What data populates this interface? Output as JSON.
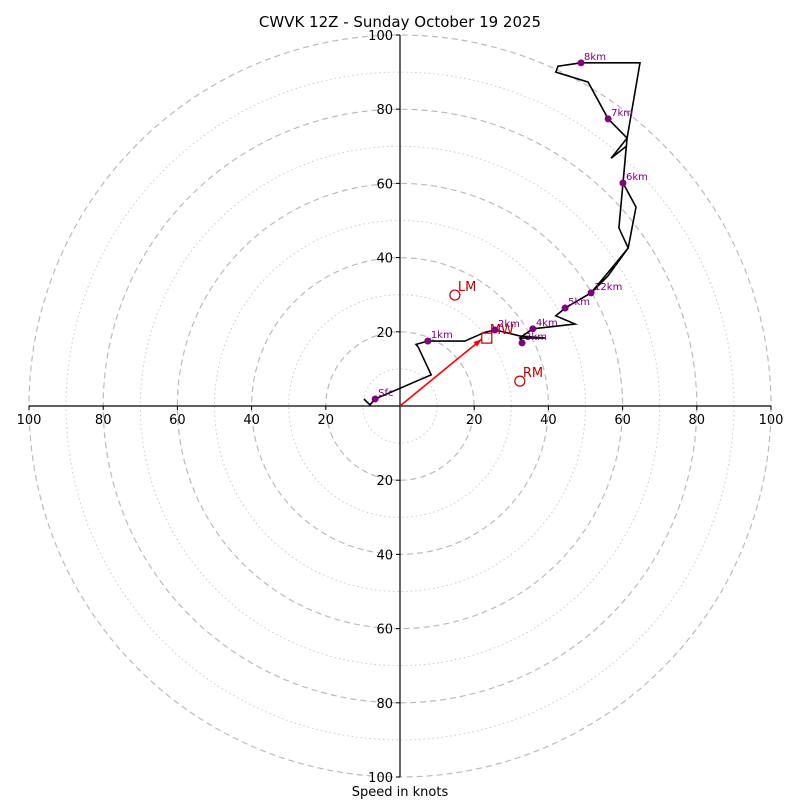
{
  "chart_data": {
    "type": "hodograph",
    "title": "CWVK 12Z - Sunday October 19 2025",
    "xlabel": "Speed in knots",
    "ylabel": "",
    "range": [
      -100,
      100
    ],
    "rings_major": [
      20,
      40,
      60,
      80,
      100
    ],
    "rings_minor": [
      10,
      30,
      50,
      70,
      90
    ],
    "tick_labels": [
      "20",
      "40",
      "60",
      "80",
      "100"
    ],
    "colors": {
      "trace": "#000000",
      "height_marker": "#800080",
      "storm_motion": "#c00000",
      "shear_vector": "#ff0000",
      "grid": "#bbbbbb"
    },
    "trace": [
      [
        -9.7,
        1.9
      ],
      [
        -8.1,
        0.3
      ],
      [
        -6.7,
        1.9
      ],
      [
        8.4,
        8.4
      ],
      [
        4.9,
        15.9
      ],
      [
        4.3,
        16.6
      ],
      [
        7.5,
        17.5
      ],
      [
        17.5,
        17.5
      ],
      [
        22.9,
        19.9
      ],
      [
        25.6,
        20.5
      ],
      [
        32.3,
        18.9
      ],
      [
        39.1,
        18.3
      ],
      [
        32.3,
        18.3
      ],
      [
        32.9,
        17.0
      ],
      [
        32.6,
        18.6
      ],
      [
        35.8,
        20.8
      ],
      [
        47.2,
        22.1
      ],
      [
        42.0,
        24.3
      ],
      [
        44.5,
        26.4
      ],
      [
        51.5,
        30.5
      ],
      [
        56.0,
        35.0
      ],
      [
        61.5,
        42.6
      ],
      [
        59.0,
        48.0
      ],
      [
        60.1,
        60.1
      ],
      [
        61.0,
        70.0
      ],
      [
        56.9,
        66.8
      ],
      [
        61.2,
        72.2
      ],
      [
        56.1,
        77.4
      ],
      [
        50.7,
        87.3
      ],
      [
        42.0,
        90.0
      ],
      [
        42.6,
        91.6
      ],
      [
        48.8,
        92.5
      ],
      [
        64.7,
        92.5
      ],
      [
        61.2,
        72.2
      ],
      [
        60.1,
        60.1
      ],
      [
        63.6,
        53.6
      ],
      [
        61.5,
        42.6
      ],
      [
        56.5,
        36.5
      ],
      [
        51.5,
        30.5
      ],
      [
        44.5,
        26.4
      ]
    ],
    "height_markers": [
      {
        "label": "Sfc",
        "u": -6.7,
        "v": 1.9
      },
      {
        "label": "1km",
        "u": 7.5,
        "v": 17.5
      },
      {
        "label": "2km",
        "u": 25.6,
        "v": 20.5
      },
      {
        "label": "3km",
        "u": 32.9,
        "v": 17.0
      },
      {
        "label": "4km",
        "u": 35.8,
        "v": 20.8
      },
      {
        "label": "5km",
        "u": 44.5,
        "v": 26.4
      },
      {
        "label": "6km",
        "u": 60.1,
        "v": 60.1
      },
      {
        "label": "7km",
        "u": 56.1,
        "v": 77.4
      },
      {
        "label": "8km",
        "u": 48.8,
        "v": 92.5
      },
      {
        "label": "12km",
        "u": 51.5,
        "v": 30.5
      }
    ],
    "storm_motions": [
      {
        "label": "LM",
        "u": 14.8,
        "v": 29.9,
        "shape": "circle"
      },
      {
        "label": "RM",
        "u": 32.3,
        "v": 6.7,
        "shape": "circle"
      },
      {
        "label": "MW",
        "u": 23.4,
        "v": 18.3,
        "shape": "square"
      }
    ],
    "shear_vector": {
      "from": [
        0,
        0
      ],
      "to": [
        22.0,
        18.0
      ]
    }
  }
}
